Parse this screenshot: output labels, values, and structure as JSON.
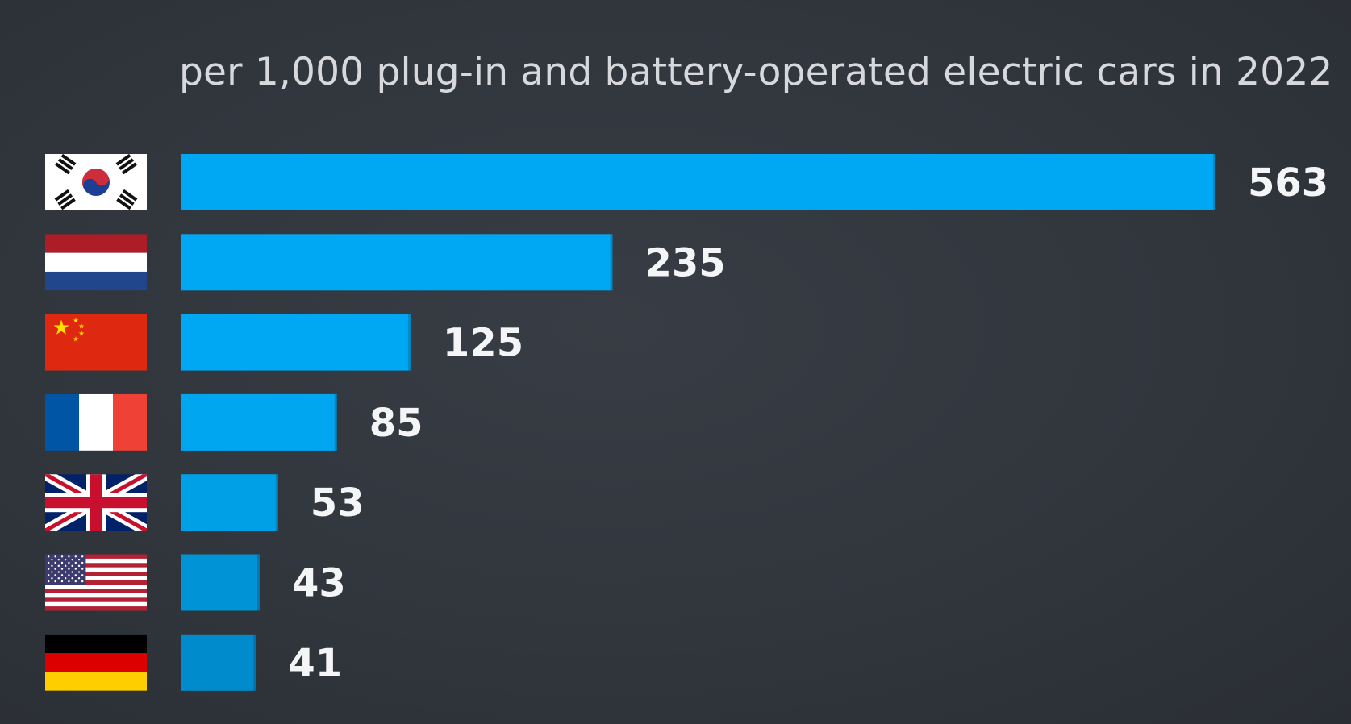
{
  "chart_data": {
    "type": "bar",
    "orientation": "horizontal",
    "title": "",
    "subtitle": "per 1,000 plug-in and battery-operated electric cars in 2022",
    "categories": [
      "South Korea",
      "Netherlands",
      "China",
      "France",
      "United Kingdom",
      "United States",
      "Germany"
    ],
    "category_icons": [
      "flag-south-korea",
      "flag-netherlands",
      "flag-china",
      "flag-france",
      "flag-united-kingdom",
      "flag-united-states",
      "flag-germany"
    ],
    "values": [
      563,
      235,
      125,
      85,
      53,
      43,
      41
    ],
    "value_labels": [
      "563",
      "235",
      "125",
      "85",
      "53",
      "43",
      "41"
    ],
    "xlim": [
      0,
      563
    ],
    "grid": false,
    "legend": "none",
    "bar_colors": [
      "#00a8f3",
      "#00a8f3",
      "#00a8f3",
      "#00a6f0",
      "#00a0e6",
      "#0093d6",
      "#008ccc"
    ],
    "background_color": "#33383f",
    "text_color": "#f4f5f7"
  }
}
